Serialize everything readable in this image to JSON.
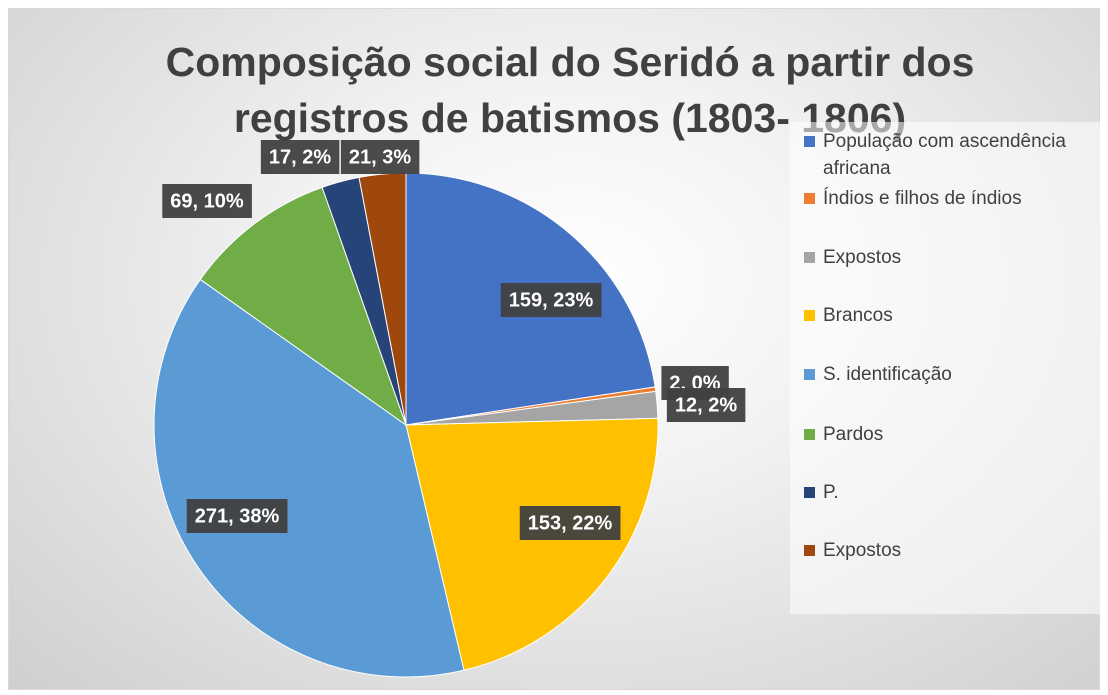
{
  "chart_data": {
    "type": "pie",
    "title": "Composição social do Seridó a partir dos registros de batismos  (1803- 1806)",
    "categories": [
      "População com ascendência africana",
      "Índios e filhos de índios",
      "Expostos",
      "Brancos",
      "S. identificação",
      "Pardos",
      "P.",
      "Expostos"
    ],
    "values": [
      159,
      2,
      12,
      153,
      271,
      69,
      17,
      21
    ],
    "value_labels": [
      "159, 23%",
      "2, 0%",
      "12, 2%",
      "153, 22%",
      "271, 38%",
      "69, 10%",
      "17, 2%",
      "21, 3%"
    ],
    "colors": [
      "#4472c4",
      "#ed7d31",
      "#a5a5a5",
      "#ffc000",
      "#5b9bd5",
      "#70ad47",
      "#264478",
      "#9e480e"
    ],
    "legend": "right"
  }
}
